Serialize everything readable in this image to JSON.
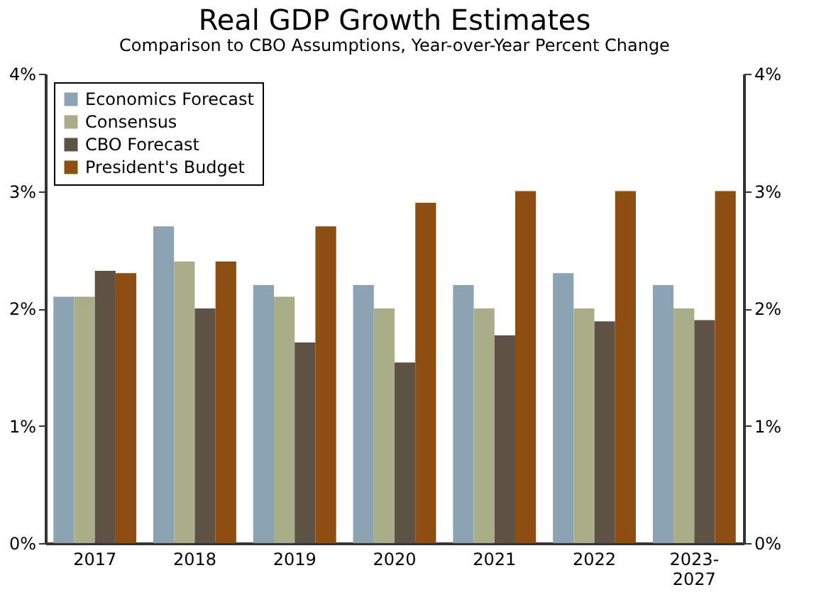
{
  "chart_data": {
    "type": "bar",
    "title": "Real GDP Growth Estimates",
    "subtitle": "Comparison to CBO Assumptions, Year-over-Year Percent Change",
    "categories": [
      "2017",
      "2018",
      "2019",
      "2020",
      "2021",
      "2022",
      "2023-2027"
    ],
    "series": [
      {
        "name": "Economics Forecast",
        "color": "#8ca3b3",
        "values": [
          2.1,
          2.7,
          2.2,
          2.2,
          2.2,
          2.3,
          2.2
        ]
      },
      {
        "name": "Consensus",
        "color": "#a9ae88",
        "values": [
          2.1,
          2.4,
          2.1,
          2.0,
          2.0,
          2.0,
          2.0
        ]
      },
      {
        "name": "CBO Forecast",
        "color": "#5e5244",
        "values": [
          2.32,
          2.0,
          1.71,
          1.54,
          1.77,
          1.89,
          1.9
        ]
      },
      {
        "name": "President's Budget",
        "color": "#8e4e12",
        "values": [
          2.3,
          2.4,
          2.7,
          2.9,
          3.0,
          3.0,
          3.0
        ]
      }
    ],
    "ylim": [
      0,
      4
    ],
    "yticks": [
      {
        "value": 0,
        "label": "0%"
      },
      {
        "value": 1,
        "label": "1%"
      },
      {
        "value": 2,
        "label": "2%"
      },
      {
        "value": 3,
        "label": "3%"
      },
      {
        "value": 4,
        "label": "4%"
      }
    ],
    "y2lim": [
      0,
      4
    ],
    "y2ticks": [
      {
        "value": 0,
        "label": "0%"
      },
      {
        "value": 1,
        "label": "1%"
      },
      {
        "value": 2,
        "label": "2%"
      },
      {
        "value": 3,
        "label": "3%"
      },
      {
        "value": 4,
        "label": "4%"
      }
    ],
    "grid": false,
    "legend": "top left"
  }
}
